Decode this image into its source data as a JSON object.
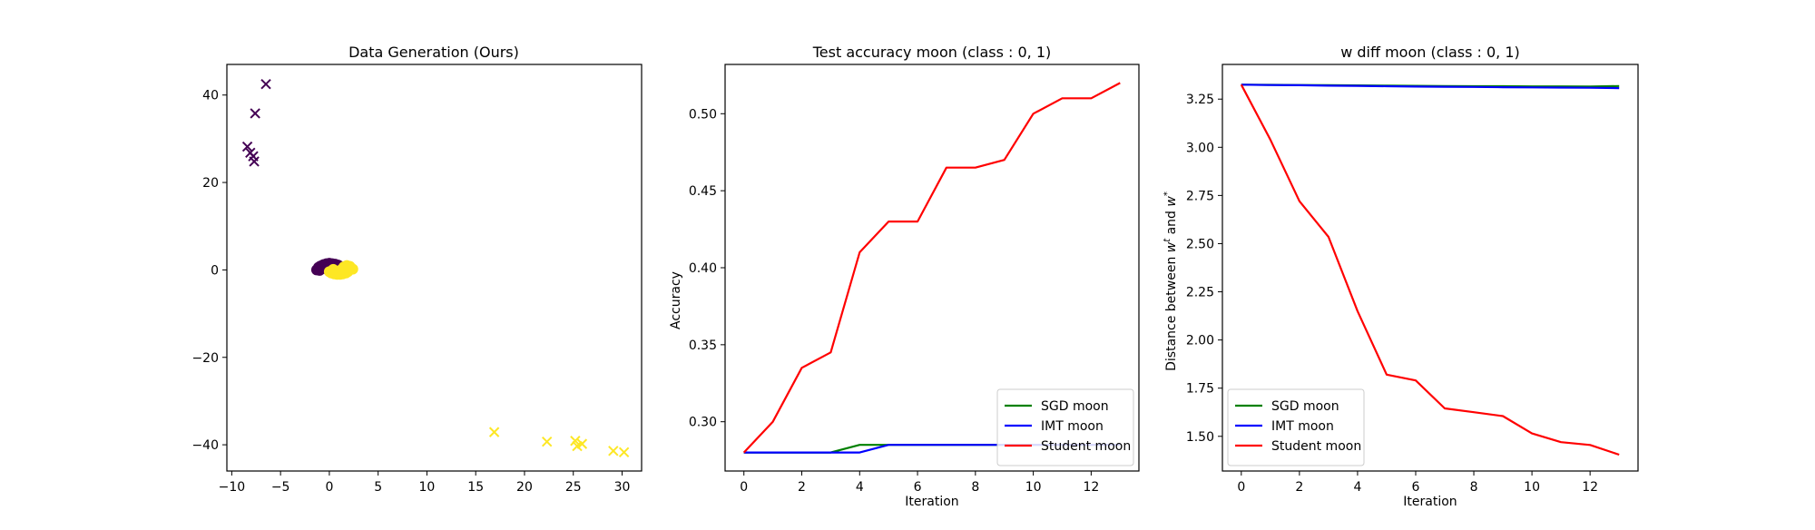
{
  "chart_data": [
    {
      "type": "scatter",
      "title": "Data Generation (Ours)",
      "xlabel": "",
      "ylabel": "",
      "xlim": [
        -10.5,
        32
      ],
      "ylim": [
        -46,
        47
      ],
      "xticks": [
        -10,
        -5,
        0,
        5,
        10,
        15,
        20,
        25,
        30
      ],
      "yticks": [
        -40,
        -20,
        0,
        20,
        40
      ],
      "xtick_labels": [
        "−10",
        "−5",
        "0",
        "5",
        "10",
        "15",
        "20",
        "25",
        "30"
      ],
      "ytick_labels": [
        "−40",
        "−20",
        "0",
        "20",
        "40"
      ],
      "grid": false,
      "colors": {
        "class0": "#440154",
        "class1": "#fde725"
      },
      "generated_points": [
        {
          "x": -6.5,
          "y": 42.5,
          "class": 0
        },
        {
          "x": -7.6,
          "y": 35.8,
          "class": 0
        },
        {
          "x": -8.4,
          "y": 28.2,
          "class": 0
        },
        {
          "x": -8.1,
          "y": 26.8,
          "class": 0
        },
        {
          "x": -7.8,
          "y": 26.0,
          "class": 0
        },
        {
          "x": -7.7,
          "y": 24.8,
          "class": 0
        },
        {
          "x": 16.9,
          "y": -37.1,
          "class": 1
        },
        {
          "x": 22.3,
          "y": -39.3,
          "class": 1
        },
        {
          "x": 25.2,
          "y": -39.1,
          "class": 1
        },
        {
          "x": 25.4,
          "y": -40.3,
          "class": 1
        },
        {
          "x": 25.9,
          "y": -39.8,
          "class": 1
        },
        {
          "x": 29.1,
          "y": -41.4,
          "class": 1
        },
        {
          "x": 30.2,
          "y": -41.7,
          "class": 1
        }
      ],
      "moon_points": [
        {
          "x": -1.2,
          "y": 0.2,
          "class": 0
        },
        {
          "x": -1.1,
          "y": 0.6,
          "class": 0
        },
        {
          "x": -0.9,
          "y": 0.9,
          "class": 0
        },
        {
          "x": -0.6,
          "y": 1.2,
          "class": 0
        },
        {
          "x": -0.3,
          "y": 1.4,
          "class": 0
        },
        {
          "x": 0.0,
          "y": 1.5,
          "class": 0
        },
        {
          "x": 0.3,
          "y": 1.4,
          "class": 0
        },
        {
          "x": 0.6,
          "y": 1.3,
          "class": 0
        },
        {
          "x": 0.9,
          "y": 1.1,
          "class": 0
        },
        {
          "x": 1.1,
          "y": 0.8,
          "class": 0
        },
        {
          "x": 1.2,
          "y": 0.4,
          "class": 0
        },
        {
          "x": -1.0,
          "y": -0.1,
          "class": 0
        },
        {
          "x": -0.7,
          "y": 0.3,
          "class": 0
        },
        {
          "x": -0.4,
          "y": 0.8,
          "class": 0
        },
        {
          "x": 0.1,
          "y": 1.0,
          "class": 0
        },
        {
          "x": 0.5,
          "y": 0.7,
          "class": 0
        },
        {
          "x": -0.2,
          "y": 0.4,
          "class": 0
        },
        {
          "x": 0.8,
          "y": 0.5,
          "class": 0
        },
        {
          "x": -1.3,
          "y": 0.0,
          "class": 0
        },
        {
          "x": 0.2,
          "y": 0.6,
          "class": 0
        },
        {
          "x": 0.0,
          "y": -0.4,
          "class": 1
        },
        {
          "x": 0.2,
          "y": -0.7,
          "class": 1
        },
        {
          "x": 0.5,
          "y": -0.9,
          "class": 1
        },
        {
          "x": 0.8,
          "y": -1.0,
          "class": 1
        },
        {
          "x": 1.1,
          "y": -1.0,
          "class": 1
        },
        {
          "x": 1.4,
          "y": -0.9,
          "class": 1
        },
        {
          "x": 1.7,
          "y": -0.7,
          "class": 1
        },
        {
          "x": 1.9,
          "y": -0.4,
          "class": 1
        },
        {
          "x": 2.1,
          "y": 0.0,
          "class": 1
        },
        {
          "x": 2.2,
          "y": 0.4,
          "class": 1
        },
        {
          "x": 2.1,
          "y": 0.8,
          "class": 1
        },
        {
          "x": 1.8,
          "y": 1.0,
          "class": 1
        },
        {
          "x": 1.5,
          "y": 0.7,
          "class": 1
        },
        {
          "x": 0.6,
          "y": -0.3,
          "class": 1
        },
        {
          "x": 1.0,
          "y": -0.5,
          "class": 1
        },
        {
          "x": 1.6,
          "y": -0.2,
          "class": 1
        },
        {
          "x": 2.4,
          "y": 0.2,
          "class": 1
        },
        {
          "x": 1.3,
          "y": 0.2,
          "class": 1
        },
        {
          "x": 0.4,
          "y": 0.1,
          "class": 1
        },
        {
          "x": 2.0,
          "y": 0.5,
          "class": 1
        }
      ]
    },
    {
      "type": "line",
      "title": "Test accuracy moon (class : 0, 1)",
      "xlabel": "Iteration",
      "ylabel": "Accuracy",
      "xlim": [
        -0.65,
        13.65
      ],
      "ylim": [
        0.268,
        0.532
      ],
      "xticks": [
        0,
        2,
        4,
        6,
        8,
        10,
        12
      ],
      "yticks": [
        0.3,
        0.35,
        0.4,
        0.45,
        0.5
      ],
      "xtick_labels": [
        "0",
        "2",
        "4",
        "6",
        "8",
        "10",
        "12"
      ],
      "ytick_labels": [
        "0.30",
        "0.35",
        "0.40",
        "0.45",
        "0.50"
      ],
      "grid": false,
      "legend": "lower right",
      "x": [
        0,
        1,
        2,
        3,
        4,
        5,
        6,
        7,
        8,
        9,
        10,
        11,
        12,
        13
      ],
      "series": [
        {
          "name": "SGD moon",
          "color": "#008000",
          "values": [
            0.28,
            0.28,
            0.28,
            0.28,
            0.285,
            0.285,
            0.285,
            0.285,
            0.285,
            0.285,
            0.285,
            0.285,
            0.285,
            0.285
          ]
        },
        {
          "name": "IMT moon",
          "color": "#0000ff",
          "values": [
            0.28,
            0.28,
            0.28,
            0.28,
            0.28,
            0.285,
            0.285,
            0.285,
            0.285,
            0.285,
            0.285,
            0.285,
            0.285,
            0.285
          ]
        },
        {
          "name": "Student moon",
          "color": "#ff0000",
          "values": [
            0.28,
            0.3,
            0.335,
            0.345,
            0.41,
            0.43,
            0.43,
            0.465,
            0.465,
            0.47,
            0.5,
            0.51,
            0.51,
            0.52
          ]
        }
      ]
    },
    {
      "type": "line",
      "title": "w diff moon (class : 0, 1)",
      "xlabel": "Iteration",
      "ylabel": "Distance between w^t and w^*",
      "ylabel_parts": [
        "Distance between ",
        "w",
        "t",
        " and ",
        "w",
        "*"
      ],
      "xlim": [
        -0.65,
        13.65
      ],
      "ylim": [
        1.32,
        3.43
      ],
      "xticks": [
        0,
        2,
        4,
        6,
        8,
        10,
        12
      ],
      "yticks": [
        1.5,
        1.75,
        2.0,
        2.25,
        2.5,
        2.75,
        3.0,
        3.25
      ],
      "xtick_labels": [
        "0",
        "2",
        "4",
        "6",
        "8",
        "10",
        "12"
      ],
      "ytick_labels": [
        "1.50",
        "1.75",
        "2.00",
        "2.25",
        "2.50",
        "2.75",
        "3.00",
        "3.25"
      ],
      "grid": false,
      "legend": "lower left",
      "x": [
        0,
        1,
        2,
        3,
        4,
        5,
        6,
        7,
        8,
        9,
        10,
        11,
        12,
        13
      ],
      "series": [
        {
          "name": "SGD moon",
          "color": "#008000",
          "values": [
            3.325,
            3.324,
            3.323,
            3.322,
            3.321,
            3.32,
            3.319,
            3.318,
            3.317,
            3.317,
            3.316,
            3.316,
            3.315,
            3.318
          ]
        },
        {
          "name": "IMT moon",
          "color": "#0000ff",
          "values": [
            3.325,
            3.323,
            3.322,
            3.32,
            3.319,
            3.317,
            3.315,
            3.314,
            3.313,
            3.312,
            3.311,
            3.31,
            3.309,
            3.307
          ]
        },
        {
          "name": "Student moon",
          "color": "#ff0000",
          "values": [
            3.325,
            3.04,
            2.72,
            2.535,
            2.15,
            1.82,
            1.79,
            1.645,
            1.625,
            1.605,
            1.515,
            1.47,
            1.455,
            1.405
          ]
        }
      ]
    }
  ]
}
